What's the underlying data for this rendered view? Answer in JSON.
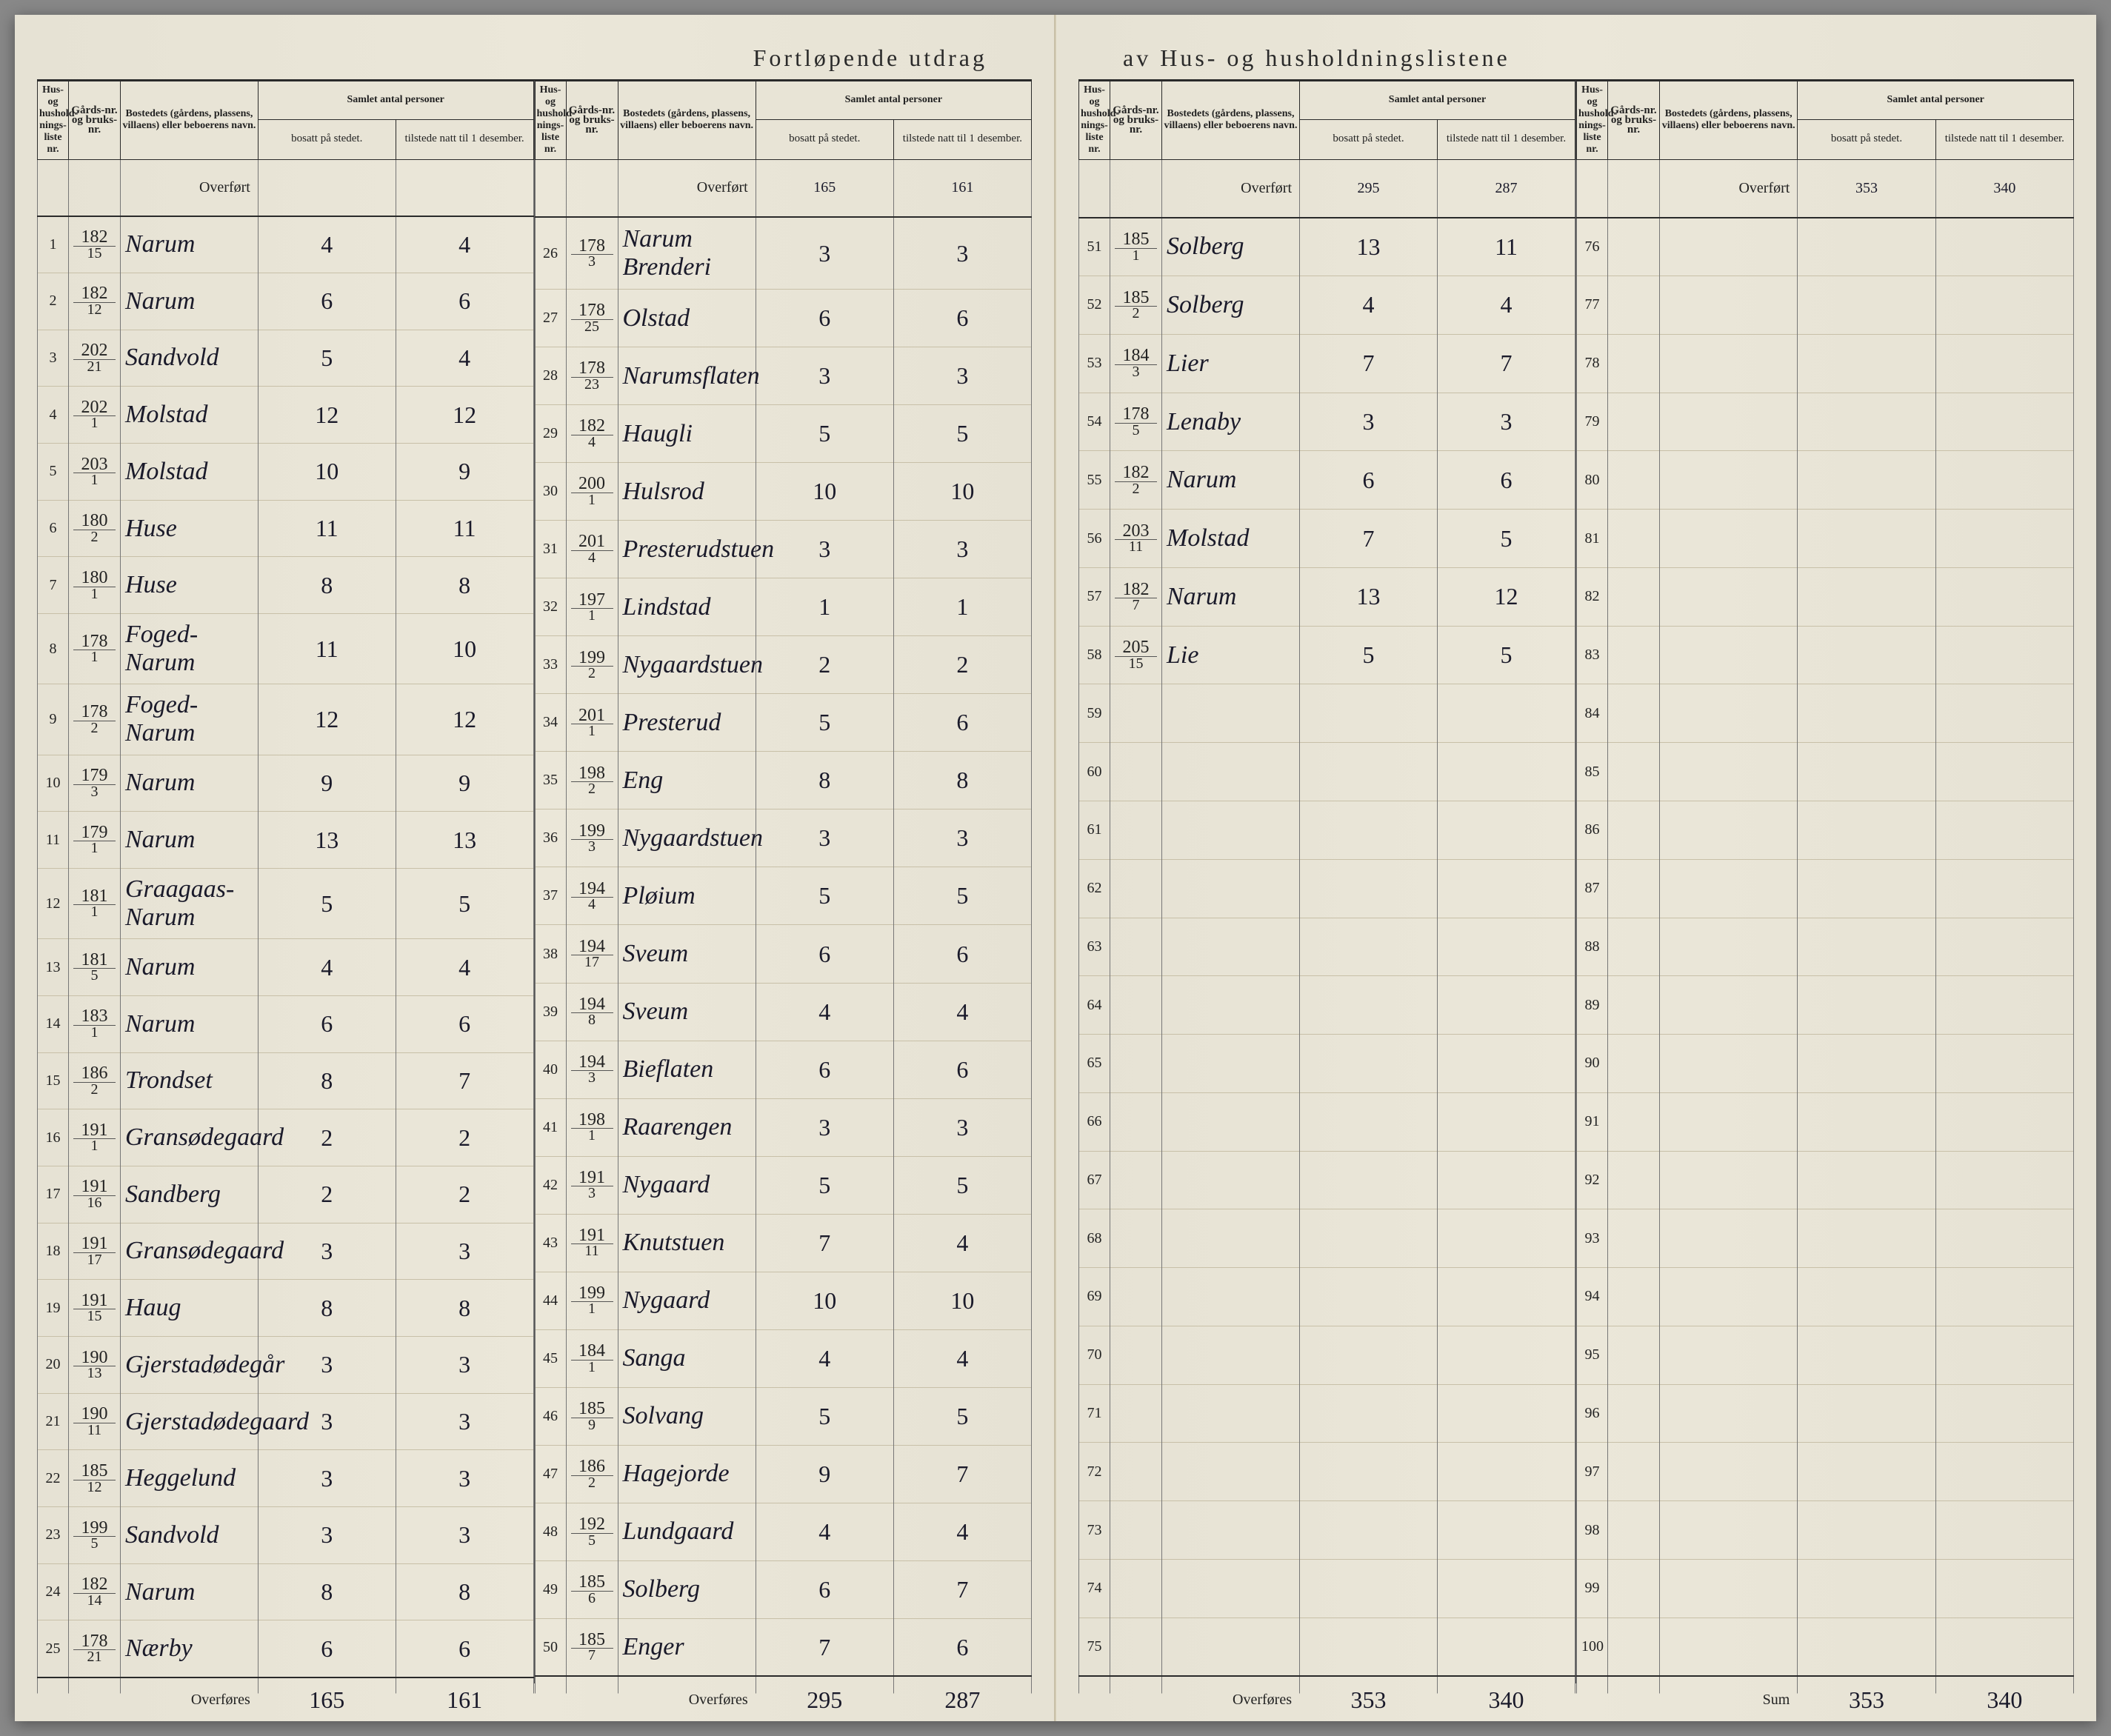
{
  "title_left": "Fortløpende utdrag",
  "title_right": "av Hus- og husholdningslistene",
  "headers": {
    "nr": "Hus- og hushold-nings-liste nr.",
    "gard": "Gårds-nr. og bruks-nr.",
    "name": "Bostedets (gårdens, plassens, villaens) eller beboerens navn.",
    "group": "Samlet antal personer",
    "bosatt": "bosatt på stedet.",
    "tilstede": "tilstede natt til 1 desember."
  },
  "carry_label": "Overført",
  "footer_label": "Overføres",
  "sum_label": "Sum",
  "colors": {
    "paper": "#e8e4d6",
    "ink": "#1a1a2a",
    "rule": "#2a2a2a",
    "faint_rule": "#c8c0a8"
  },
  "cols": [
    {
      "carry": {
        "bosatt": "",
        "tilstede": ""
      },
      "rows": [
        {
          "nr": "1",
          "gard_t": "182",
          "gard_b": "15",
          "name": "Narum",
          "bosatt": "4",
          "tilstede": "4"
        },
        {
          "nr": "2",
          "gard_t": "182",
          "gard_b": "12",
          "name": "Narum",
          "bosatt": "6",
          "tilstede": "6"
        },
        {
          "nr": "3",
          "gard_t": "202",
          "gard_b": "21",
          "name": "Sandvold",
          "bosatt": "5",
          "tilstede": "4"
        },
        {
          "nr": "4",
          "gard_t": "202",
          "gard_b": "1",
          "name": "Molstad",
          "bosatt": "12",
          "tilstede": "12"
        },
        {
          "nr": "5",
          "gard_t": "203",
          "gard_b": "1",
          "name": "Molstad",
          "bosatt": "10",
          "tilstede": "9"
        },
        {
          "nr": "6",
          "gard_t": "180",
          "gard_b": "2",
          "name": "Huse",
          "bosatt": "11",
          "tilstede": "11"
        },
        {
          "nr": "7",
          "gard_t": "180",
          "gard_b": "1",
          "name": "Huse",
          "bosatt": "8",
          "tilstede": "8"
        },
        {
          "nr": "8",
          "gard_t": "178",
          "gard_b": "1",
          "name": "Foged-Narum",
          "bosatt": "11",
          "tilstede": "10"
        },
        {
          "nr": "9",
          "gard_t": "178",
          "gard_b": "2",
          "name": "Foged-Narum",
          "bosatt": "12",
          "tilstede": "12"
        },
        {
          "nr": "10",
          "gard_t": "179",
          "gard_b": "3",
          "name": "Narum",
          "bosatt": "9",
          "tilstede": "9"
        },
        {
          "nr": "11",
          "gard_t": "179",
          "gard_b": "1",
          "name": "Narum",
          "bosatt": "13",
          "tilstede": "13"
        },
        {
          "nr": "12",
          "gard_t": "181",
          "gard_b": "1",
          "name": "Graagaas-Narum",
          "bosatt": "5",
          "tilstede": "5"
        },
        {
          "nr": "13",
          "gard_t": "181",
          "gard_b": "5",
          "name": "Narum",
          "bosatt": "4",
          "tilstede": "4"
        },
        {
          "nr": "14",
          "gard_t": "183",
          "gard_b": "1",
          "name": "Narum",
          "bosatt": "6",
          "tilstede": "6"
        },
        {
          "nr": "15",
          "gard_t": "186",
          "gard_b": "2",
          "name": "Trondset",
          "bosatt": "8",
          "tilstede": "7"
        },
        {
          "nr": "16",
          "gard_t": "191",
          "gard_b": "1",
          "name": "Gransødegaard",
          "bosatt": "2",
          "tilstede": "2"
        },
        {
          "nr": "17",
          "gard_t": "191",
          "gard_b": "16",
          "name": "Sandberg",
          "bosatt": "2",
          "tilstede": "2"
        },
        {
          "nr": "18",
          "gard_t": "191",
          "gard_b": "17",
          "name": "Gransødegaard",
          "bosatt": "3",
          "tilstede": "3"
        },
        {
          "nr": "19",
          "gard_t": "191",
          "gard_b": "15",
          "name": "Haug",
          "bosatt": "8",
          "tilstede": "8"
        },
        {
          "nr": "20",
          "gard_t": "190",
          "gard_b": "13",
          "name": "Gjerstadødegår",
          "bosatt": "3",
          "tilstede": "3"
        },
        {
          "nr": "21",
          "gard_t": "190",
          "gard_b": "11",
          "name": "Gjerstadødegaard",
          "bosatt": "3",
          "tilstede": "3"
        },
        {
          "nr": "22",
          "gard_t": "185",
          "gard_b": "12",
          "name": "Heggelund",
          "bosatt": "3",
          "tilstede": "3"
        },
        {
          "nr": "23",
          "gard_t": "199",
          "gard_b": "5",
          "name": "Sandvold",
          "bosatt": "3",
          "tilstede": "3"
        },
        {
          "nr": "24",
          "gard_t": "182",
          "gard_b": "14",
          "name": "Narum",
          "bosatt": "8",
          "tilstede": "8"
        },
        {
          "nr": "25",
          "gard_t": "178",
          "gard_b": "21",
          "name": "Nærby",
          "bosatt": "6",
          "tilstede": "6"
        }
      ],
      "footer": {
        "bosatt": "165",
        "tilstede": "161"
      }
    },
    {
      "carry": {
        "bosatt": "165",
        "tilstede": "161"
      },
      "rows": [
        {
          "nr": "26",
          "gard_t": "178",
          "gard_b": "3",
          "name": "Narum Brenderi",
          "bosatt": "3",
          "tilstede": "3"
        },
        {
          "nr": "27",
          "gard_t": "178",
          "gard_b": "25",
          "name": "Olstad",
          "bosatt": "6",
          "tilstede": "6"
        },
        {
          "nr": "28",
          "gard_t": "178",
          "gard_b": "23",
          "name": "Narumsflaten",
          "bosatt": "3",
          "tilstede": "3"
        },
        {
          "nr": "29",
          "gard_t": "182",
          "gard_b": "4",
          "name": "Haugli",
          "bosatt": "5",
          "tilstede": "5"
        },
        {
          "nr": "30",
          "gard_t": "200",
          "gard_b": "1",
          "name": "Hulsrod",
          "bosatt": "10",
          "tilstede": "10"
        },
        {
          "nr": "31",
          "gard_t": "201",
          "gard_b": "4",
          "name": "Presterudstuen",
          "bosatt": "3",
          "tilstede": "3"
        },
        {
          "nr": "32",
          "gard_t": "197",
          "gard_b": "1",
          "name": "Lindstad",
          "bosatt": "1",
          "tilstede": "1"
        },
        {
          "nr": "33",
          "gard_t": "199",
          "gard_b": "2",
          "name": "Nygaardstuen",
          "bosatt": "2",
          "tilstede": "2"
        },
        {
          "nr": "34",
          "gard_t": "201",
          "gard_b": "1",
          "name": "Presterud",
          "bosatt": "5",
          "tilstede": "6"
        },
        {
          "nr": "35",
          "gard_t": "198",
          "gard_b": "2",
          "name": "Eng",
          "bosatt": "8",
          "tilstede": "8"
        },
        {
          "nr": "36",
          "gard_t": "199",
          "gard_b": "3",
          "name": "Nygaardstuen",
          "bosatt": "3",
          "tilstede": "3"
        },
        {
          "nr": "37",
          "gard_t": "194",
          "gard_b": "4",
          "name": "Pløium",
          "bosatt": "5",
          "tilstede": "5"
        },
        {
          "nr": "38",
          "gard_t": "194",
          "gard_b": "17",
          "name": "Sveum",
          "bosatt": "6",
          "tilstede": "6"
        },
        {
          "nr": "39",
          "gard_t": "194",
          "gard_b": "8",
          "name": "Sveum",
          "bosatt": "4",
          "tilstede": "4"
        },
        {
          "nr": "40",
          "gard_t": "194",
          "gard_b": "3",
          "name": "Bieflaten",
          "bosatt": "6",
          "tilstede": "6"
        },
        {
          "nr": "41",
          "gard_t": "198",
          "gard_b": "1",
          "name": "Raarengen",
          "bosatt": "3",
          "tilstede": "3"
        },
        {
          "nr": "42",
          "gard_t": "191",
          "gard_b": "3",
          "name": "Nygaard",
          "bosatt": "5",
          "tilstede": "5"
        },
        {
          "nr": "43",
          "gard_t": "191",
          "gard_b": "11",
          "name": "Knutstuen",
          "bosatt": "7",
          "tilstede": "4"
        },
        {
          "nr": "44",
          "gard_t": "199",
          "gard_b": "1",
          "name": "Nygaard",
          "bosatt": "10",
          "tilstede": "10"
        },
        {
          "nr": "45",
          "gard_t": "184",
          "gard_b": "1",
          "name": "Sanga",
          "bosatt": "4",
          "tilstede": "4"
        },
        {
          "nr": "46",
          "gard_t": "185",
          "gard_b": "9",
          "name": "Solvang",
          "bosatt": "5",
          "tilstede": "5"
        },
        {
          "nr": "47",
          "gard_t": "186",
          "gard_b": "2",
          "name": "Hagejorde",
          "bosatt": "9",
          "tilstede": "7"
        },
        {
          "nr": "48",
          "gard_t": "192",
          "gard_b": "5",
          "name": "Lundgaard",
          "bosatt": "4",
          "tilstede": "4"
        },
        {
          "nr": "49",
          "gard_t": "185",
          "gard_b": "6",
          "name": "Solberg",
          "bosatt": "6",
          "tilstede": "7"
        },
        {
          "nr": "50",
          "gard_t": "185",
          "gard_b": "7",
          "name": "Enger",
          "bosatt": "7",
          "tilstede": "6"
        }
      ],
      "footer": {
        "bosatt": "295",
        "tilstede": "287"
      }
    },
    {
      "carry": {
        "bosatt": "295",
        "tilstede": "287"
      },
      "rows": [
        {
          "nr": "51",
          "gard_t": "185",
          "gard_b": "1",
          "name": "Solberg",
          "bosatt": "13",
          "tilstede": "11"
        },
        {
          "nr": "52",
          "gard_t": "185",
          "gard_b": "2",
          "name": "Solberg",
          "bosatt": "4",
          "tilstede": "4"
        },
        {
          "nr": "53",
          "gard_t": "184",
          "gard_b": "3",
          "name": "Lier",
          "bosatt": "7",
          "tilstede": "7"
        },
        {
          "nr": "54",
          "gard_t": "178",
          "gard_b": "5",
          "name": "Lenaby",
          "bosatt": "3",
          "tilstede": "3"
        },
        {
          "nr": "55",
          "gard_t": "182",
          "gard_b": "2",
          "name": "Narum",
          "bosatt": "6",
          "tilstede": "6"
        },
        {
          "nr": "56",
          "gard_t": "203",
          "gard_b": "11",
          "name": "Molstad",
          "bosatt": "7",
          "tilstede": "5"
        },
        {
          "nr": "57",
          "gard_t": "182",
          "gard_b": "7",
          "name": "Narum",
          "bosatt": "13",
          "tilstede": "12"
        },
        {
          "nr": "58",
          "gard_t": "205",
          "gard_b": "15",
          "name": "Lie",
          "bosatt": "5",
          "tilstede": "5"
        },
        {
          "nr": "59",
          "gard_t": "",
          "gard_b": "",
          "name": "",
          "bosatt": "",
          "tilstede": ""
        },
        {
          "nr": "60",
          "gard_t": "",
          "gard_b": "",
          "name": "",
          "bosatt": "",
          "tilstede": ""
        },
        {
          "nr": "61",
          "gard_t": "",
          "gard_b": "",
          "name": "",
          "bosatt": "",
          "tilstede": ""
        },
        {
          "nr": "62",
          "gard_t": "",
          "gard_b": "",
          "name": "",
          "bosatt": "",
          "tilstede": ""
        },
        {
          "nr": "63",
          "gard_t": "",
          "gard_b": "",
          "name": "",
          "bosatt": "",
          "tilstede": ""
        },
        {
          "nr": "64",
          "gard_t": "",
          "gard_b": "",
          "name": "",
          "bosatt": "",
          "tilstede": ""
        },
        {
          "nr": "65",
          "gard_t": "",
          "gard_b": "",
          "name": "",
          "bosatt": "",
          "tilstede": ""
        },
        {
          "nr": "66",
          "gard_t": "",
          "gard_b": "",
          "name": "",
          "bosatt": "",
          "tilstede": ""
        },
        {
          "nr": "67",
          "gard_t": "",
          "gard_b": "",
          "name": "",
          "bosatt": "",
          "tilstede": ""
        },
        {
          "nr": "68",
          "gard_t": "",
          "gard_b": "",
          "name": "",
          "bosatt": "",
          "tilstede": ""
        },
        {
          "nr": "69",
          "gard_t": "",
          "gard_b": "",
          "name": "",
          "bosatt": "",
          "tilstede": ""
        },
        {
          "nr": "70",
          "gard_t": "",
          "gard_b": "",
          "name": "",
          "bosatt": "",
          "tilstede": ""
        },
        {
          "nr": "71",
          "gard_t": "",
          "gard_b": "",
          "name": "",
          "bosatt": "",
          "tilstede": ""
        },
        {
          "nr": "72",
          "gard_t": "",
          "gard_b": "",
          "name": "",
          "bosatt": "",
          "tilstede": ""
        },
        {
          "nr": "73",
          "gard_t": "",
          "gard_b": "",
          "name": "",
          "bosatt": "",
          "tilstede": ""
        },
        {
          "nr": "74",
          "gard_t": "",
          "gard_b": "",
          "name": "",
          "bosatt": "",
          "tilstede": ""
        },
        {
          "nr": "75",
          "gard_t": "",
          "gard_b": "",
          "name": "",
          "bosatt": "",
          "tilstede": ""
        }
      ],
      "footer": {
        "bosatt": "353",
        "tilstede": "340"
      }
    },
    {
      "carry": {
        "bosatt": "353",
        "tilstede": "340"
      },
      "rows": [
        {
          "nr": "76",
          "gard_t": "",
          "gard_b": "",
          "name": "",
          "bosatt": "",
          "tilstede": ""
        },
        {
          "nr": "77",
          "gard_t": "",
          "gard_b": "",
          "name": "",
          "bosatt": "",
          "tilstede": ""
        },
        {
          "nr": "78",
          "gard_t": "",
          "gard_b": "",
          "name": "",
          "bosatt": "",
          "tilstede": ""
        },
        {
          "nr": "79",
          "gard_t": "",
          "gard_b": "",
          "name": "",
          "bosatt": "",
          "tilstede": ""
        },
        {
          "nr": "80",
          "gard_t": "",
          "gard_b": "",
          "name": "",
          "bosatt": "",
          "tilstede": ""
        },
        {
          "nr": "81",
          "gard_t": "",
          "gard_b": "",
          "name": "",
          "bosatt": "",
          "tilstede": ""
        },
        {
          "nr": "82",
          "gard_t": "",
          "gard_b": "",
          "name": "",
          "bosatt": "",
          "tilstede": ""
        },
        {
          "nr": "83",
          "gard_t": "",
          "gard_b": "",
          "name": "",
          "bosatt": "",
          "tilstede": ""
        },
        {
          "nr": "84",
          "gard_t": "",
          "gard_b": "",
          "name": "",
          "bosatt": "",
          "tilstede": ""
        },
        {
          "nr": "85",
          "gard_t": "",
          "gard_b": "",
          "name": "",
          "bosatt": "",
          "tilstede": ""
        },
        {
          "nr": "86",
          "gard_t": "",
          "gard_b": "",
          "name": "",
          "bosatt": "",
          "tilstede": ""
        },
        {
          "nr": "87",
          "gard_t": "",
          "gard_b": "",
          "name": "",
          "bosatt": "",
          "tilstede": ""
        },
        {
          "nr": "88",
          "gard_t": "",
          "gard_b": "",
          "name": "",
          "bosatt": "",
          "tilstede": ""
        },
        {
          "nr": "89",
          "gard_t": "",
          "gard_b": "",
          "name": "",
          "bosatt": "",
          "tilstede": ""
        },
        {
          "nr": "90",
          "gard_t": "",
          "gard_b": "",
          "name": "",
          "bosatt": "",
          "tilstede": ""
        },
        {
          "nr": "91",
          "gard_t": "",
          "gard_b": "",
          "name": "",
          "bosatt": "",
          "tilstede": ""
        },
        {
          "nr": "92",
          "gard_t": "",
          "gard_b": "",
          "name": "",
          "bosatt": "",
          "tilstede": ""
        },
        {
          "nr": "93",
          "gard_t": "",
          "gard_b": "",
          "name": "",
          "bosatt": "",
          "tilstede": ""
        },
        {
          "nr": "94",
          "gard_t": "",
          "gard_b": "",
          "name": "",
          "bosatt": "",
          "tilstede": ""
        },
        {
          "nr": "95",
          "gard_t": "",
          "gard_b": "",
          "name": "",
          "bosatt": "",
          "tilstede": ""
        },
        {
          "nr": "96",
          "gard_t": "",
          "gard_b": "",
          "name": "",
          "bosatt": "",
          "tilstede": ""
        },
        {
          "nr": "97",
          "gard_t": "",
          "gard_b": "",
          "name": "",
          "bosatt": "",
          "tilstede": ""
        },
        {
          "nr": "98",
          "gard_t": "",
          "gard_b": "",
          "name": "",
          "bosatt": "",
          "tilstede": ""
        },
        {
          "nr": "99",
          "gard_t": "",
          "gard_b": "",
          "name": "",
          "bosatt": "",
          "tilstede": ""
        },
        {
          "nr": "100",
          "gard_t": "",
          "gard_b": "",
          "name": "",
          "bosatt": "",
          "tilstede": ""
        }
      ],
      "footer": {
        "bosatt": "353",
        "tilstede": "340"
      },
      "is_sum": true
    }
  ]
}
